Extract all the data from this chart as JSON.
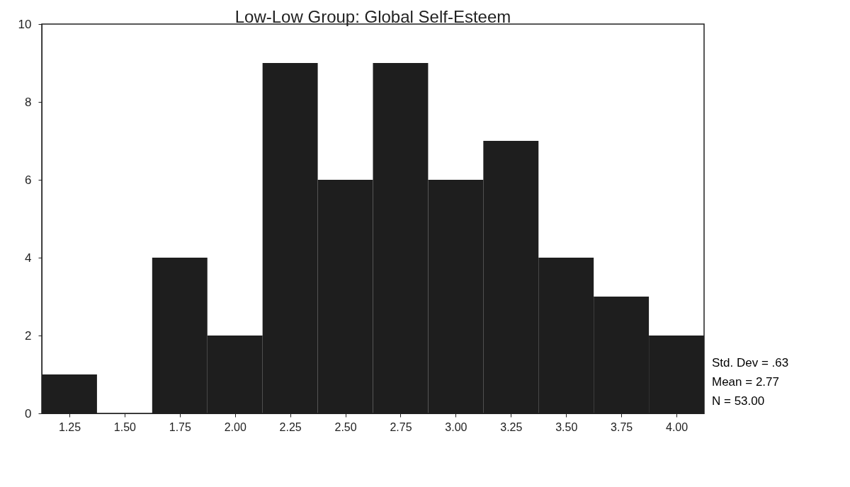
{
  "chart_data": {
    "type": "histogram",
    "title": "Low-Low Group: Global Self-Esteem",
    "bins": [
      1.125,
      1.375,
      1.625,
      1.875,
      2.125,
      2.375,
      2.625,
      2.875,
      3.125,
      3.375,
      3.625,
      3.875,
      4.125
    ],
    "values": [
      1,
      0,
      4,
      2,
      9,
      6,
      9,
      6,
      7,
      4,
      3,
      2
    ],
    "color": "#1e1e1e",
    "xlim": [
      1.125,
      4.125
    ],
    "xticks": [
      1.25,
      {
        "value": 1.5,
        "label": "1.50"
      },
      1.75,
      {
        "value": 2,
        "label": "2.00"
      },
      2.25,
      {
        "value": 2.5,
        "label": "2.50"
      },
      2.75,
      {
        "value": 3,
        "label": "3.00"
      },
      3.25,
      {
        "value": 3.5,
        "label": "3.50"
      },
      3.75,
      {
        "value": 4,
        "label": "4.00"
      }
    ],
    "ylim": [
      0,
      10
    ],
    "yticks": [
      0,
      2,
      4,
      6,
      8,
      10
    ],
    "annotations": [
      "Std. Dev = .63",
      "Mean = 2.77",
      "N = 53.00"
    ]
  }
}
